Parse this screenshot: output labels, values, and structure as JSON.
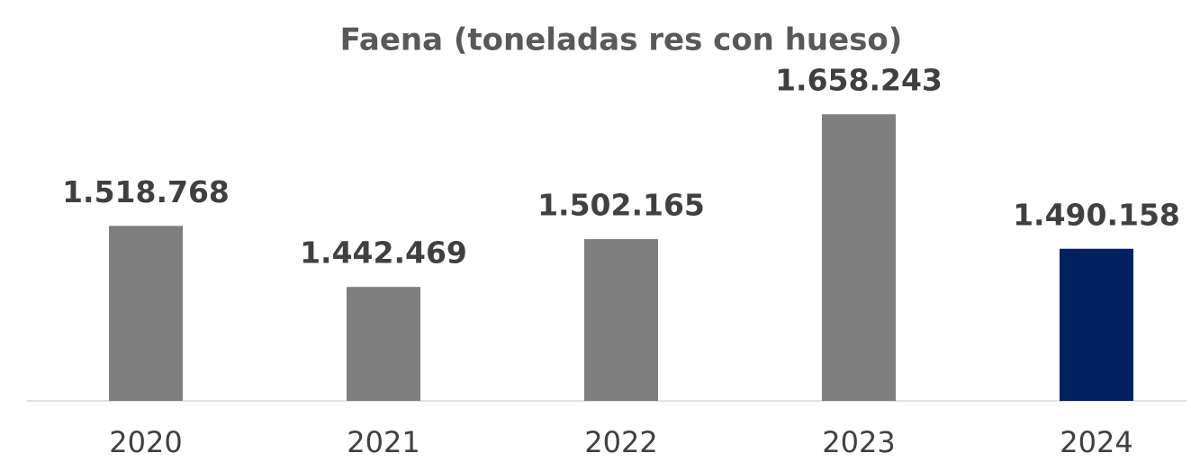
{
  "chart_data": {
    "type": "bar",
    "title": "Faena (toneladas res con hueso)",
    "categories": [
      "2020",
      "2021",
      "2022",
      "2023",
      "2024"
    ],
    "values": [
      1518768,
      1442469,
      1502165,
      1658243,
      1490158
    ],
    "value_labels": [
      "1.518.768",
      "1.442.469",
      "1.502.165",
      "1.658.243",
      "1.490.158"
    ],
    "colors": [
      "#7f7f7f",
      "#7f7f7f",
      "#7f7f7f",
      "#7f7f7f",
      "#002060"
    ],
    "ylim": [
      1300000,
      1700000
    ]
  }
}
